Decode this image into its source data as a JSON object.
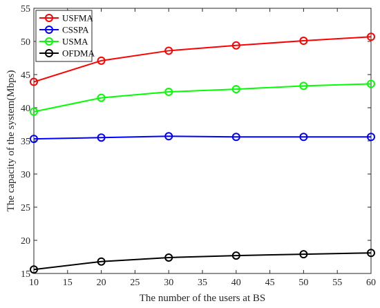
{
  "chart_data": {
    "type": "line",
    "title": "",
    "xlabel": "The number of the users at BS",
    "ylabel": "The capacity of the system(Mbps)",
    "xlim": [
      10,
      60
    ],
    "ylim": [
      15,
      55
    ],
    "xticks": [
      10,
      15,
      20,
      25,
      30,
      35,
      40,
      45,
      50,
      55,
      60
    ],
    "yticks": [
      15,
      20,
      25,
      30,
      35,
      40,
      45,
      50,
      55
    ],
    "x": [
      10,
      20,
      30,
      40,
      50,
      60
    ],
    "grid": false,
    "legend_position": "top-left",
    "series": [
      {
        "name": "USFMA",
        "color": "#ff0000",
        "marker": "circle",
        "values": [
          43.9,
          47.1,
          48.6,
          49.4,
          50.1,
          50.7
        ]
      },
      {
        "name": "CSSPA",
        "color": "#0000ff",
        "marker": "circle",
        "values": [
          35.3,
          35.5,
          35.7,
          35.6,
          35.6,
          35.6
        ]
      },
      {
        "name": "USMA",
        "color": "#00ff00",
        "marker": "circle",
        "values": [
          39.4,
          41.5,
          42.4,
          42.8,
          43.3,
          43.6
        ]
      },
      {
        "name": "OFDMA",
        "color": "#000000",
        "marker": "circle",
        "values": [
          15.6,
          16.8,
          17.4,
          17.7,
          17.9,
          18.1
        ]
      }
    ]
  }
}
